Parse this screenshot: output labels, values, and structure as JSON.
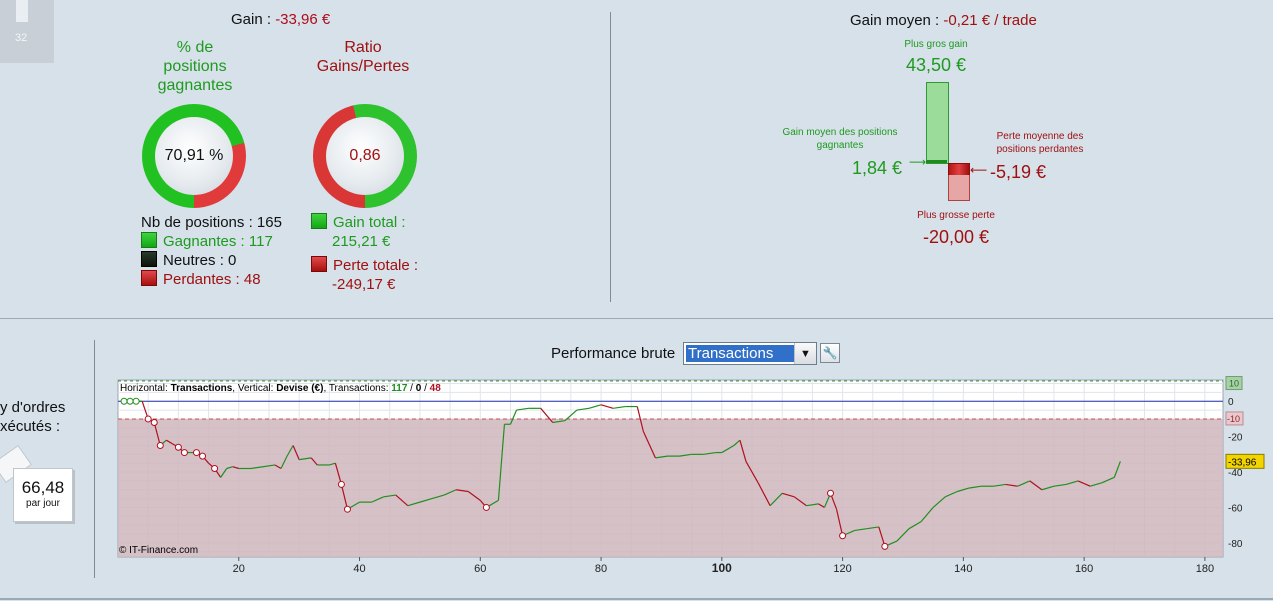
{
  "tile": {
    "number": "32"
  },
  "left_panel": {
    "gain_label": "Gain : ",
    "gain_value": "-33,96 €",
    "pct_title_1": "% de",
    "pct_title_2": "positions",
    "pct_title_3": "gagnantes",
    "pct_value": "70,91 %",
    "pct_fraction": 0.7091,
    "ratio_title_1": "Ratio",
    "ratio_title_2": "Gains/Pertes",
    "ratio_value": "0,86",
    "ratio_fraction": 0.4634,
    "nb_positions": "Nb de positions : 165",
    "gagnantes": "Gagnantes : 117",
    "neutres": "Neutres : 0",
    "perdantes": "Perdantes : 48",
    "gain_total_label": "Gain total :",
    "gain_total_value": "215,21 €",
    "perte_totale_label": "Perte totale :",
    "perte_totale_value": "-249,17 €"
  },
  "right_panel": {
    "gain_moyen_label": "Gain moyen : ",
    "gain_moyen_value": "-0,21 € / trade",
    "plus_gros_gain_label": "Plus gros gain",
    "plus_gros_gain_value": "43,50 €",
    "gain_moyen_pos_label_1": "Gain moyen des positions",
    "gain_moyen_pos_label_2": "gagnantes",
    "gain_moyen_pos_value": "1,84 €",
    "perte_moyenne_label_1": "Perte moyenne des",
    "perte_moyenne_label_2": "positions perdantes",
    "perte_moyenne_value": "-5,19 €",
    "plus_grosse_perte_label": "Plus grosse perte",
    "plus_grosse_perte_value": "-20,00 €"
  },
  "side_card": {
    "text_line1": "y d'ordres",
    "text_line2": "xécutés :",
    "value": "66,48",
    "unit": "par jour"
  },
  "performance": {
    "label": "Performance brute",
    "select_value": "Transactions"
  },
  "chart_data": {
    "type": "line",
    "header_horizontal_label": "Horizontal: ",
    "header_horizontal_value": "Transactions",
    "header_vertical_label": ", Vertical: ",
    "header_vertical_value": "Devise (€)",
    "header_trans_label": ", Transactions: ",
    "header_wins": "117",
    "header_sep1": " / ",
    "header_neutral": "0",
    "header_sep2": " / ",
    "header_losses": "48",
    "copyright": "© IT-Finance.com",
    "xlim": [
      0,
      183
    ],
    "ylim": [
      -88,
      12
    ],
    "x_ticks": [
      "20",
      "40",
      "60",
      "80",
      "100",
      "120",
      "140",
      "160",
      "180"
    ],
    "x_tick_values": [
      20,
      40,
      60,
      80,
      100,
      120,
      140,
      160,
      180
    ],
    "y_ticks": [
      "0",
      "-20",
      "-40",
      "-60",
      "-80"
    ],
    "y_tick_values": [
      0,
      -20,
      -40,
      -60,
      -80
    ],
    "badge_top": "10",
    "badge_top_value": 10,
    "badge_mid": "-10",
    "badge_mid_value": -10,
    "current_value_label": "-33,96",
    "current_value": -33.96,
    "colors": {
      "gain": "#1f8f1f",
      "loss": "#b01020",
      "zero_line": "#2030b0",
      "loss_zone": "#cfb6bd"
    },
    "points": [
      [
        1,
        0
      ],
      [
        2,
        0
      ],
      [
        3,
        0
      ],
      [
        4,
        0
      ],
      [
        5,
        -10
      ],
      [
        6,
        -12
      ],
      [
        7,
        -25
      ],
      [
        8,
        -22
      ],
      [
        9,
        -24
      ],
      [
        10,
        -26
      ],
      [
        11,
        -29
      ],
      [
        12,
        -29
      ],
      [
        13,
        -29
      ],
      [
        14,
        -31
      ],
      [
        15,
        -35
      ],
      [
        16,
        -38
      ],
      [
        17,
        -43
      ],
      [
        18,
        -38
      ],
      [
        19,
        -37
      ],
      [
        20,
        -38
      ],
      [
        22,
        -38
      ],
      [
        24,
        -37
      ],
      [
        26,
        -36
      ],
      [
        27,
        -38
      ],
      [
        28,
        -31
      ],
      [
        29,
        -25
      ],
      [
        30,
        -33
      ],
      [
        32,
        -32
      ],
      [
        33,
        -36
      ],
      [
        35,
        -36
      ],
      [
        36,
        -35
      ],
      [
        37,
        -47
      ],
      [
        38,
        -61
      ],
      [
        40,
        -57
      ],
      [
        42,
        -57
      ],
      [
        44,
        -54
      ],
      [
        46,
        -53
      ],
      [
        48,
        -59
      ],
      [
        50,
        -57
      ],
      [
        52,
        -55
      ],
      [
        54,
        -53
      ],
      [
        56,
        -50
      ],
      [
        58,
        -51
      ],
      [
        60,
        -56
      ],
      [
        61,
        -60
      ],
      [
        63,
        -56
      ],
      [
        64,
        -13
      ],
      [
        65,
        -13
      ],
      [
        66,
        -5
      ],
      [
        68,
        -4
      ],
      [
        70,
        -4
      ],
      [
        72,
        -12
      ],
      [
        74,
        -11
      ],
      [
        76,
        -5
      ],
      [
        78,
        -4
      ],
      [
        80,
        -2
      ],
      [
        82,
        -4
      ],
      [
        84,
        -3
      ],
      [
        86,
        -3
      ],
      [
        87,
        -17
      ],
      [
        89,
        -32
      ],
      [
        91,
        -31
      ],
      [
        93,
        -31
      ],
      [
        95,
        -30
      ],
      [
        97,
        -30
      ],
      [
        99,
        -29
      ],
      [
        100,
        -29
      ],
      [
        102,
        -25
      ],
      [
        103,
        -22
      ],
      [
        104,
        -34
      ],
      [
        106,
        -46
      ],
      [
        108,
        -59
      ],
      [
        110,
        -52
      ],
      [
        112,
        -54
      ],
      [
        114,
        -59
      ],
      [
        116,
        -58
      ],
      [
        117,
        -60
      ],
      [
        118,
        -52
      ],
      [
        119,
        -61
      ],
      [
        120,
        -76
      ],
      [
        122,
        -73
      ],
      [
        124,
        -72
      ],
      [
        126,
        -71
      ],
      [
        127,
        -82
      ],
      [
        129,
        -79
      ],
      [
        131,
        -72
      ],
      [
        133,
        -68
      ],
      [
        135,
        -60
      ],
      [
        137,
        -54
      ],
      [
        139,
        -51
      ],
      [
        141,
        -49
      ],
      [
        143,
        -48
      ],
      [
        145,
        -48
      ],
      [
        147,
        -47
      ],
      [
        149,
        -48
      ],
      [
        151,
        -45
      ],
      [
        153,
        -50
      ],
      [
        155,
        -48
      ],
      [
        157,
        -47
      ],
      [
        159,
        -45
      ],
      [
        161,
        -48
      ],
      [
        163,
        -46
      ],
      [
        165,
        -43
      ],
      [
        166,
        -34
      ]
    ],
    "markers_x": [
      1,
      2,
      3,
      5,
      6,
      7,
      10,
      11,
      13,
      14,
      16,
      37,
      38,
      61,
      118,
      120,
      127
    ]
  }
}
